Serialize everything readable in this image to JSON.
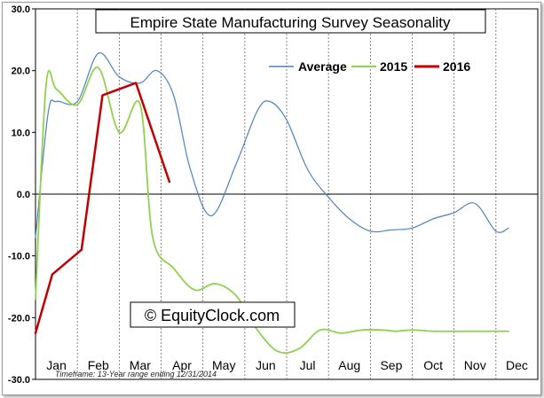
{
  "chart_data": {
    "type": "line",
    "title": "Empire State Manufacturing Survey Seasonality",
    "watermark": "© EquityClock.com",
    "footnote": "Timeframe: 13-Year range ending 12/31/2014",
    "xlabel": "",
    "ylabel": "",
    "categories": [
      "Jan",
      "Feb",
      "Mar",
      "Apr",
      "May",
      "Jun",
      "Jul",
      "Aug",
      "Sep",
      "Oct",
      "Nov",
      "Dec"
    ],
    "ylim": [
      -30,
      30
    ],
    "yticks": [
      "30.0",
      "20.0",
      "10.0",
      "0.0",
      "-10.0",
      "-20.0",
      "-30.0"
    ],
    "ytick_values": [
      30,
      20,
      10,
      0,
      -10,
      -20,
      -30
    ],
    "grid": {
      "vertical_dashed": true,
      "horizontal": false,
      "zero_line": true
    },
    "legend_position": "top-right",
    "series": [
      {
        "name": "Average",
        "color": "#4f81bd",
        "x": [
          0.0,
          0.3,
          0.5,
          1.0,
          1.5,
          2.0,
          2.5,
          2.9,
          3.3,
          3.7,
          4.2,
          4.8,
          5.3,
          5.6,
          6.0,
          6.5,
          7.0,
          7.5,
          8.0,
          8.5,
          9.0,
          9.5,
          10.0,
          10.5,
          11.0,
          11.3
        ],
        "y": [
          -7,
          13,
          15,
          15,
          22.8,
          19,
          18,
          20,
          16,
          4,
          -3.5,
          5,
          13.5,
          15,
          12,
          4,
          -0.5,
          -4,
          -6,
          -5.8,
          -5.5,
          -4,
          -3,
          -1.5,
          -6,
          -5.5
        ],
        "width": 1.2
      },
      {
        "name": "2015",
        "color": "#92d050",
        "x": [
          0.0,
          0.25,
          0.5,
          1.0,
          1.5,
          2.0,
          2.5,
          2.8,
          3.3,
          3.8,
          4.3,
          4.8,
          5.3,
          5.8,
          6.3,
          6.8,
          7.3,
          7.8,
          8.3,
          8.6,
          9.0,
          9.5,
          10.0,
          10.5,
          11.0,
          11.3
        ],
        "y": [
          -17,
          17.5,
          17,
          14.5,
          20.5,
          10,
          14.5,
          -7,
          -12,
          -15.5,
          -14.5,
          -16.5,
          -22,
          -25.5,
          -25,
          -22,
          -22.5,
          -22,
          -22,
          -22.2,
          -22,
          -22.2,
          -22.2,
          -22.2,
          -22.2,
          -22.2
        ],
        "width": 1.8
      },
      {
        "name": "2016",
        "color": "#c00000",
        "x": [
          0.0,
          0.4,
          1.1,
          1.6,
          2.4,
          3.2
        ],
        "y": [
          -22.5,
          -13,
          -9,
          16,
          18,
          2
        ],
        "width": 2.5
      }
    ]
  }
}
